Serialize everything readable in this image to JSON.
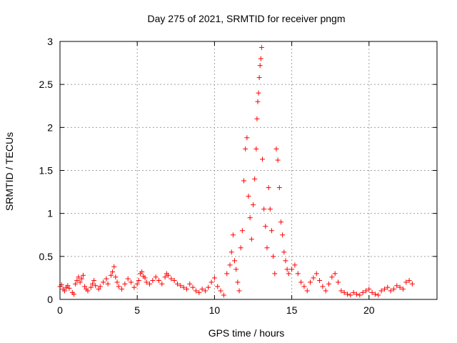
{
  "chart_data": {
    "type": "scatter",
    "title": "Day 275 of 2021, SRMTID for receiver pngm",
    "xlabel": "GPS time / hours",
    "ylabel": "SRMTID / TECUs",
    "xlim": [
      0,
      24.4
    ],
    "ylim": [
      0,
      3
    ],
    "xticks": [
      0,
      5,
      10,
      15,
      20
    ],
    "xtick_labels": [
      "0",
      "5",
      "10",
      "15",
      "20"
    ],
    "yticks": [
      0,
      0.5,
      1,
      1.5,
      2,
      2.5,
      3
    ],
    "ytick_labels": [
      "0",
      "0.5",
      "1",
      "1.5",
      "2",
      "2.5",
      "3"
    ],
    "grid": true,
    "marker": "+",
    "marker_color": "#ff0000",
    "series": [
      {
        "name": "SRMTID",
        "points": [
          [
            0.0,
            0.15
          ],
          [
            0.1,
            0.17
          ],
          [
            0.2,
            0.12
          ],
          [
            0.3,
            0.1
          ],
          [
            0.4,
            0.14
          ],
          [
            0.5,
            0.16
          ],
          [
            0.6,
            0.13
          ],
          [
            0.8,
            0.08
          ],
          [
            0.9,
            0.06
          ],
          [
            1.0,
            0.18
          ],
          [
            1.1,
            0.22
          ],
          [
            1.2,
            0.26
          ],
          [
            1.3,
            0.2
          ],
          [
            1.4,
            0.24
          ],
          [
            1.5,
            0.28
          ],
          [
            1.6,
            0.15
          ],
          [
            1.7,
            0.12
          ],
          [
            1.8,
            0.1
          ],
          [
            2.0,
            0.14
          ],
          [
            2.1,
            0.18
          ],
          [
            2.2,
            0.22
          ],
          [
            2.3,
            0.16
          ],
          [
            2.5,
            0.12
          ],
          [
            2.6,
            0.15
          ],
          [
            2.8,
            0.2
          ],
          [
            3.0,
            0.24
          ],
          [
            3.1,
            0.18
          ],
          [
            3.3,
            0.28
          ],
          [
            3.4,
            0.32
          ],
          [
            3.5,
            0.38
          ],
          [
            3.6,
            0.26
          ],
          [
            3.7,
            0.2
          ],
          [
            3.8,
            0.15
          ],
          [
            4.0,
            0.12
          ],
          [
            4.2,
            0.18
          ],
          [
            4.4,
            0.24
          ],
          [
            4.6,
            0.2
          ],
          [
            4.8,
            0.14
          ],
          [
            5.0,
            0.18
          ],
          [
            5.1,
            0.22
          ],
          [
            5.2,
            0.3
          ],
          [
            5.3,
            0.32
          ],
          [
            5.4,
            0.27
          ],
          [
            5.5,
            0.25
          ],
          [
            5.6,
            0.2
          ],
          [
            5.8,
            0.18
          ],
          [
            6.0,
            0.22
          ],
          [
            6.2,
            0.26
          ],
          [
            6.4,
            0.22
          ],
          [
            6.6,
            0.18
          ],
          [
            6.8,
            0.26
          ],
          [
            6.9,
            0.3
          ],
          [
            7.0,
            0.28
          ],
          [
            7.2,
            0.24
          ],
          [
            7.4,
            0.22
          ],
          [
            7.6,
            0.18
          ],
          [
            7.8,
            0.16
          ],
          [
            8.0,
            0.14
          ],
          [
            8.2,
            0.12
          ],
          [
            8.4,
            0.18
          ],
          [
            8.6,
            0.14
          ],
          [
            8.8,
            0.1
          ],
          [
            9.0,
            0.08
          ],
          [
            9.2,
            0.12
          ],
          [
            9.4,
            0.1
          ],
          [
            9.6,
            0.14
          ],
          [
            9.8,
            0.2
          ],
          [
            10.0,
            0.25
          ],
          [
            10.2,
            0.15
          ],
          [
            10.4,
            0.1
          ],
          [
            10.6,
            0.05
          ],
          [
            10.8,
            0.3
          ],
          [
            11.0,
            0.4
          ],
          [
            11.1,
            0.55
          ],
          [
            11.2,
            0.75
          ],
          [
            11.3,
            0.45
          ],
          [
            11.4,
            0.35
          ],
          [
            11.5,
            0.2
          ],
          [
            11.6,
            0.1
          ],
          [
            11.7,
            0.6
          ],
          [
            11.8,
            0.8
          ],
          [
            11.9,
            1.38
          ],
          [
            12.0,
            1.75
          ],
          [
            12.1,
            1.88
          ],
          [
            12.2,
            1.2
          ],
          [
            12.3,
            0.95
          ],
          [
            12.4,
            0.7
          ],
          [
            12.5,
            1.1
          ],
          [
            12.6,
            1.4
          ],
          [
            12.7,
            1.75
          ],
          [
            12.75,
            2.1
          ],
          [
            12.8,
            2.3
          ],
          [
            12.85,
            2.4
          ],
          [
            12.9,
            2.58
          ],
          [
            12.95,
            2.72
          ],
          [
            13.0,
            2.8
          ],
          [
            13.05,
            2.93
          ],
          [
            13.1,
            1.63
          ],
          [
            13.2,
            1.05
          ],
          [
            13.3,
            0.85
          ],
          [
            13.4,
            0.6
          ],
          [
            13.5,
            1.3
          ],
          [
            13.6,
            1.05
          ],
          [
            13.7,
            0.8
          ],
          [
            13.8,
            0.5
          ],
          [
            13.9,
            0.3
          ],
          [
            14.0,
            1.75
          ],
          [
            14.1,
            1.62
          ],
          [
            14.2,
            1.3
          ],
          [
            14.3,
            0.9
          ],
          [
            14.4,
            0.75
          ],
          [
            14.5,
            0.55
          ],
          [
            14.6,
            0.45
          ],
          [
            14.7,
            0.35
          ],
          [
            14.8,
            0.3
          ],
          [
            15.0,
            0.35
          ],
          [
            15.2,
            0.4
          ],
          [
            15.4,
            0.3
          ],
          [
            15.6,
            0.2
          ],
          [
            15.8,
            0.15
          ],
          [
            16.0,
            0.1
          ],
          [
            16.2,
            0.2
          ],
          [
            16.4,
            0.25
          ],
          [
            16.6,
            0.3
          ],
          [
            16.8,
            0.22
          ],
          [
            17.0,
            0.15
          ],
          [
            17.2,
            0.1
          ],
          [
            17.4,
            0.18
          ],
          [
            17.6,
            0.26
          ],
          [
            17.8,
            0.3
          ],
          [
            18.0,
            0.2
          ],
          [
            18.2,
            0.1
          ],
          [
            18.4,
            0.08
          ],
          [
            18.6,
            0.06
          ],
          [
            18.8,
            0.05
          ],
          [
            19.0,
            0.08
          ],
          [
            19.2,
            0.06
          ],
          [
            19.4,
            0.05
          ],
          [
            19.6,
            0.08
          ],
          [
            19.8,
            0.1
          ],
          [
            20.0,
            0.12
          ],
          [
            20.2,
            0.08
          ],
          [
            20.4,
            0.06
          ],
          [
            20.6,
            0.05
          ],
          [
            20.8,
            0.1
          ],
          [
            21.0,
            0.12
          ],
          [
            21.2,
            0.14
          ],
          [
            21.4,
            0.1
          ],
          [
            21.6,
            0.12
          ],
          [
            21.8,
            0.16
          ],
          [
            22.0,
            0.14
          ],
          [
            22.2,
            0.12
          ],
          [
            22.4,
            0.2
          ],
          [
            22.6,
            0.22
          ],
          [
            22.8,
            0.18
          ]
        ]
      }
    ]
  }
}
